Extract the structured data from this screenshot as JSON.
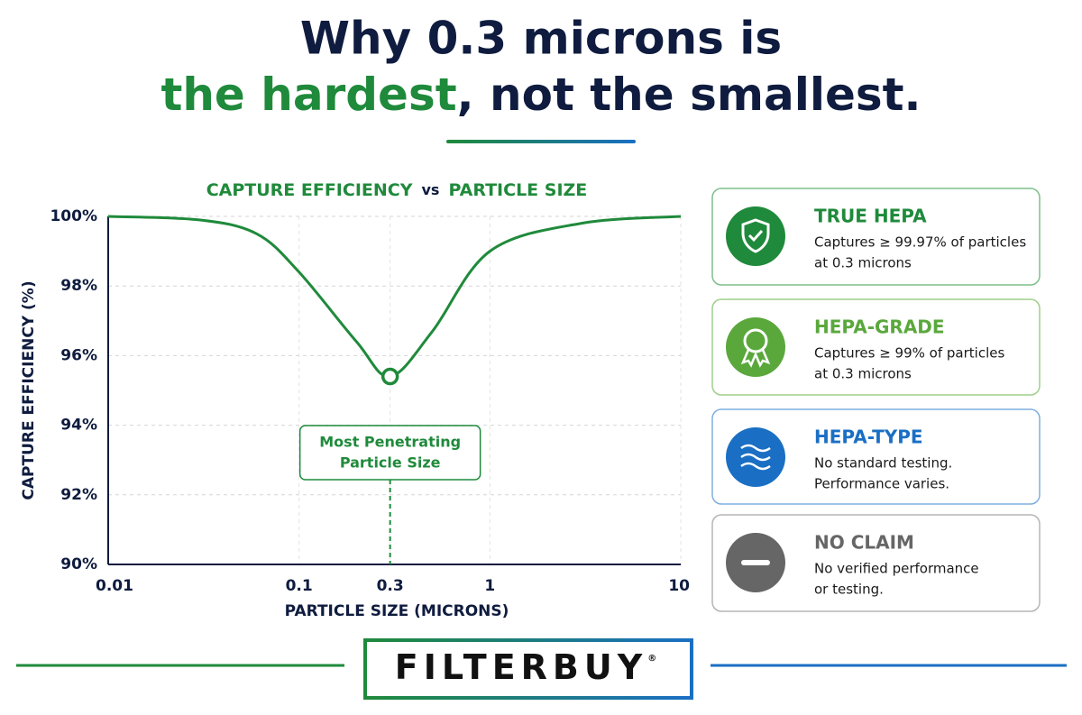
{
  "header": {
    "line1": "Why 0.3 microns is",
    "highlight": "the hardest",
    "rest": ", not the smallest."
  },
  "chart_data": {
    "type": "line",
    "title": [
      "CAPTURE EFFICIENCY",
      "vs",
      "PARTICLE SIZE"
    ],
    "x_label": "PARTICLE SIZE (MICRONS)",
    "y_label": "CAPTURE EFFICIENCY (%)",
    "x": [
      0.01,
      0.03,
      0.06,
      0.1,
      0.2,
      0.3,
      0.5,
      1,
      3,
      10
    ],
    "series": [
      {
        "name": "Capture efficiency",
        "color": "#1f8a3b",
        "values": [
          100,
          99.9,
          99.5,
          98.4,
          96.4,
          95.4,
          96.7,
          99.0,
          99.8,
          100
        ]
      }
    ],
    "xscale": "log",
    "xlim": [
      0.01,
      10
    ],
    "xticks": [
      0.01,
      0.1,
      0.3,
      1,
      10
    ],
    "ylim": [
      90,
      100
    ],
    "yticks": [
      {
        "value": 90,
        "label": "90%"
      },
      {
        "value": 92,
        "label": "92%"
      },
      {
        "value": 94,
        "label": "94%"
      },
      {
        "value": 96,
        "label": "96%"
      },
      {
        "value": 98,
        "label": "98%"
      },
      {
        "value": 100,
        "label": "100%"
      }
    ],
    "grid": true,
    "annotation": {
      "x": 0.3,
      "y": 95.4,
      "text": [
        "Most Penetrating",
        "Particle Size"
      ]
    }
  },
  "cards": [
    {
      "title": "TRUE HEPA",
      "lines": [
        "Captures ≥ 99.97% of particles",
        "at 0.3 microns"
      ]
    },
    {
      "title": "HEPA-GRADE",
      "lines": [
        "Captures ≥ 99% of particles",
        "at 0.3 microns"
      ]
    },
    {
      "title": "HEPA-TYPE",
      "lines": [
        "No standard testing.",
        "Performance varies."
      ]
    },
    {
      "title": "NO CLAIM",
      "lines": [
        "No verified performance",
        "or testing."
      ]
    }
  ],
  "footer": {
    "brand": "FILTERBUY",
    "mark": "®"
  }
}
